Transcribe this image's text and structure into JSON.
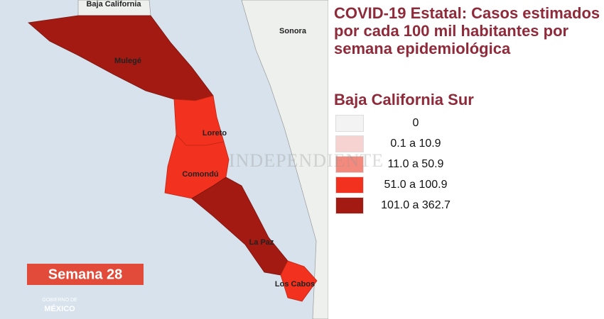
{
  "title": "COVID-19 Estatal: Casos estimados por cada 100 mil habitantes por semana epidemiológica",
  "subtitle": "Baja California Sur",
  "legend": [
    {
      "label": "0",
      "color": "#f3f3f3"
    },
    {
      "label": "0.1 a 10.9",
      "color": "#f6d2d0"
    },
    {
      "label": "11.0 a 50.9",
      "color": "#f4897e"
    },
    {
      "label": "51.0 a 100.9",
      "color": "#f2321e"
    },
    {
      "label": "101.0 a 362.7",
      "color": "#a31a12"
    }
  ],
  "map": {
    "neighbors": [
      "Baja California",
      "Sonora"
    ],
    "municipalities": [
      {
        "name": "Mulegé",
        "color": "#a31a12"
      },
      {
        "name": "Loreto",
        "color": "#f2321e"
      },
      {
        "name": "Comondú",
        "color": "#f2321e"
      },
      {
        "name": "La Paz",
        "color": "#a31a12"
      },
      {
        "name": "Los Cabos",
        "color": "#f2321e"
      }
    ]
  },
  "week_label": "Semana 28",
  "logo": [
    "GOBIERNO DE",
    "MÉXICO"
  ],
  "watermark": "INDEPENDIENTE"
}
